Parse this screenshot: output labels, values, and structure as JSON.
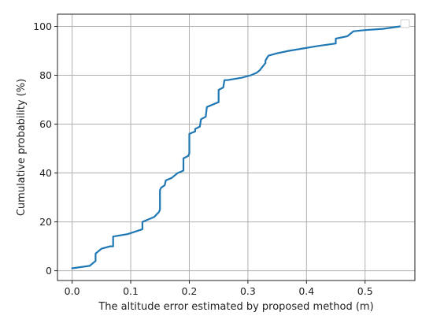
{
  "chart_data": {
    "type": "line",
    "title": "",
    "xlabel": "The altitude error estimated by proposed method (m)",
    "ylabel": "Cumulative probability (%)",
    "xlim": [
      -0.025,
      0.585
    ],
    "ylim": [
      -4,
      105
    ],
    "xticks": [
      0.0,
      0.1,
      0.2,
      0.3,
      0.4,
      0.5
    ],
    "xtick_labels": [
      "0.0",
      "0.1",
      "0.2",
      "0.3",
      "0.4",
      "0.5"
    ],
    "yticks": [
      0,
      20,
      40,
      60,
      80,
      100
    ],
    "ytick_labels": [
      "0",
      "20",
      "40",
      "60",
      "80",
      "100"
    ],
    "grid": true,
    "legend": "top-right (empty)",
    "color": "#1f77b4",
    "series": [
      {
        "x": [
          0.0,
          0.03,
          0.04,
          0.04,
          0.05,
          0.065,
          0.07,
          0.07,
          0.095,
          0.12,
          0.12,
          0.14,
          0.148,
          0.15,
          0.15,
          0.152,
          0.158,
          0.16,
          0.17,
          0.18,
          0.19,
          0.19,
          0.198,
          0.2,
          0.2,
          0.21,
          0.21,
          0.218,
          0.22,
          0.228,
          0.23,
          0.24,
          0.25,
          0.25,
          0.258,
          0.26,
          0.265,
          0.29,
          0.305,
          0.315,
          0.32,
          0.33,
          0.33,
          0.335,
          0.35,
          0.37,
          0.42,
          0.45,
          0.45,
          0.47,
          0.48,
          0.5,
          0.53,
          0.56
        ],
        "y": [
          1,
          2,
          4,
          7,
          9,
          10,
          10,
          14,
          15,
          17,
          20,
          22,
          24,
          25,
          33,
          34,
          35,
          37,
          38,
          40,
          41,
          46,
          47,
          48,
          56,
          57,
          58,
          59,
          62,
          63,
          67,
          68,
          69,
          74,
          75,
          78,
          78,
          79,
          80,
          81,
          82,
          85,
          86,
          88,
          89,
          90,
          92,
          93,
          95,
          96,
          98,
          98.5,
          99,
          100
        ]
      }
    ]
  }
}
